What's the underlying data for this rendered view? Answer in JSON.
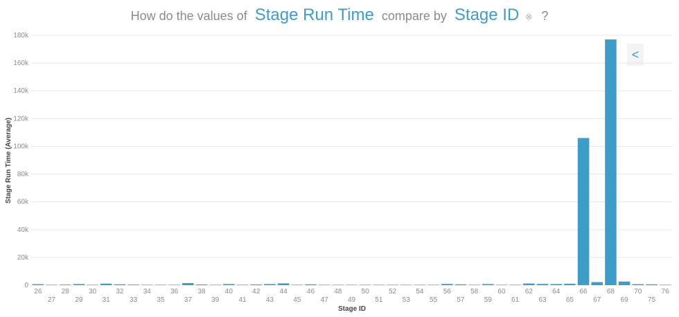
{
  "question": {
    "prefix": "How do the values of",
    "measure": "Stage Run Time",
    "middle": "compare by",
    "dimension": "Stage ID",
    "remove_glyph": "⊗",
    "suffix": "?"
  },
  "nav": {
    "back_glyph": "<"
  },
  "chart_data": {
    "type": "bar",
    "xlabel": "Stage ID",
    "ylabel": "Stage Run Time (Average)",
    "ylim": [
      0,
      180000
    ],
    "yticks": [
      0,
      20000,
      40000,
      60000,
      80000,
      100000,
      120000,
      140000,
      160000,
      180000
    ],
    "ytick_labels": [
      "0",
      "20k",
      "40k",
      "60k",
      "80k",
      "100k",
      "120k",
      "140k",
      "160k",
      "180k"
    ],
    "grid": true,
    "bar_color": "#3d9dc7",
    "categories": [
      "26",
      "27",
      "28",
      "29",
      "30",
      "31",
      "32",
      "33",
      "34",
      "35",
      "36",
      "37",
      "38",
      "39",
      "40",
      "41",
      "42",
      "43",
      "44",
      "45",
      "46",
      "47",
      "48",
      "49",
      "50",
      "51",
      "52",
      "53",
      "54",
      "55",
      "56",
      "57",
      "58",
      "59",
      "60",
      "61",
      "62",
      "63",
      "64",
      "65",
      "66",
      "67",
      "68",
      "69",
      "70",
      "75",
      "76"
    ],
    "values": [
      700,
      300,
      400,
      800,
      300,
      1100,
      600,
      400,
      300,
      300,
      300,
      1500,
      500,
      300,
      800,
      300,
      500,
      800,
      1300,
      300,
      600,
      300,
      300,
      300,
      300,
      300,
      300,
      300,
      300,
      300,
      900,
      600,
      300,
      800,
      300,
      300,
      1200,
      900,
      800,
      1000,
      106000,
      2200,
      177000,
      2600,
      700,
      600,
      300
    ]
  }
}
